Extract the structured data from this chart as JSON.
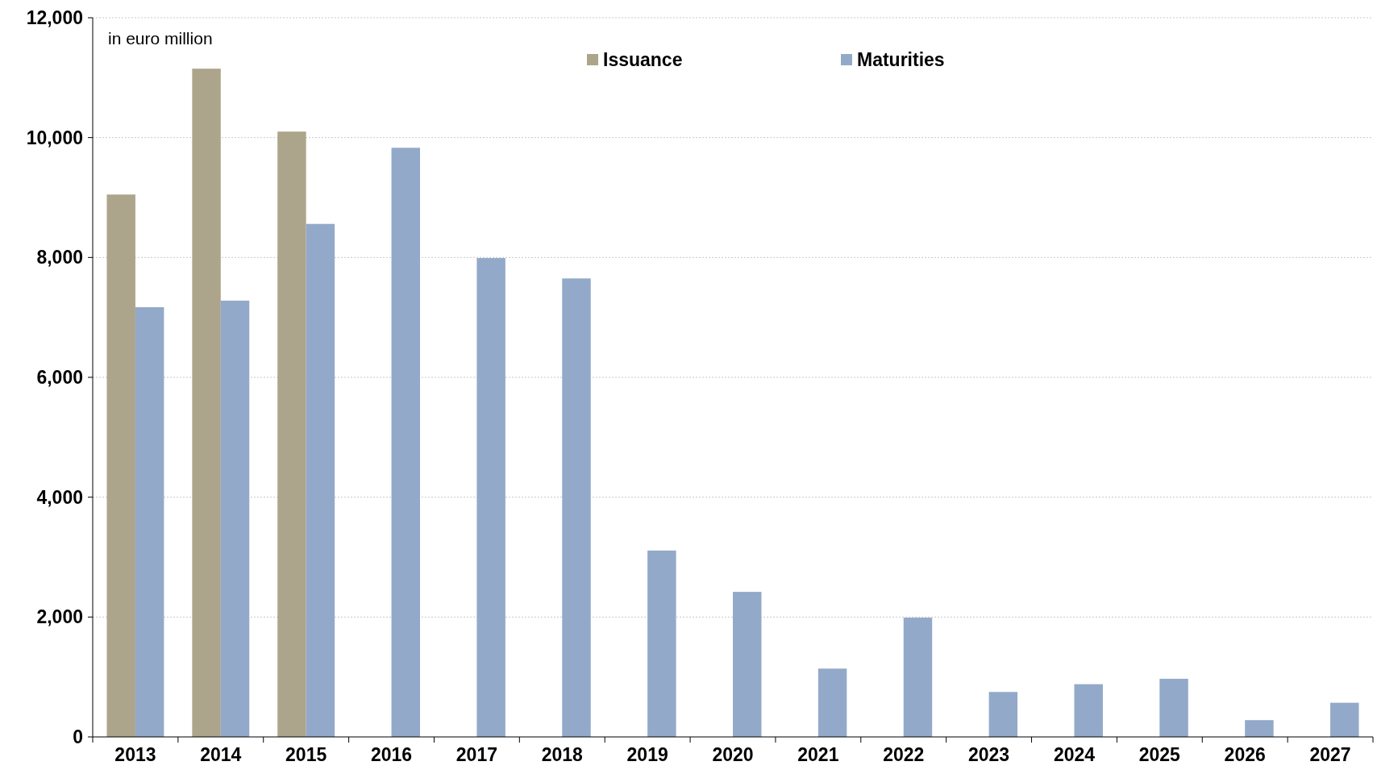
{
  "chart_data": {
    "type": "bar",
    "categories": [
      "2013",
      "2014",
      "2015",
      "2016",
      "2017",
      "2018",
      "2019",
      "2020",
      "2021",
      "2022",
      "2023",
      "2024",
      "2025",
      "2026",
      "2027"
    ],
    "series": [
      {
        "name": "Issuance",
        "color": "#ada58b",
        "values": [
          9050,
          11150,
          10100,
          null,
          null,
          null,
          null,
          null,
          null,
          null,
          null,
          null,
          null,
          null,
          null
        ]
      },
      {
        "name": "Maturities",
        "color": "#93a9c9",
        "values": [
          7170,
          7280,
          8560,
          9830,
          7990,
          7650,
          3110,
          2420,
          1140,
          1990,
          750,
          880,
          970,
          280,
          570
        ]
      }
    ],
    "ylim": [
      0,
      12000
    ],
    "yticks": [
      0,
      {
        "value": 2000,
        "label": "2,000"
      },
      {
        "value": 4000,
        "label": "4,000"
      },
      {
        "value": 6000,
        "label": "6,000"
      },
      {
        "value": 8000,
        "label": "8,000"
      },
      {
        "value": 10000,
        "label": "10,000"
      },
      {
        "value": 12000,
        "label": "12,000"
      }
    ],
    "grid": "y",
    "legend": "top",
    "annotations": [
      "in euro million"
    ]
  }
}
